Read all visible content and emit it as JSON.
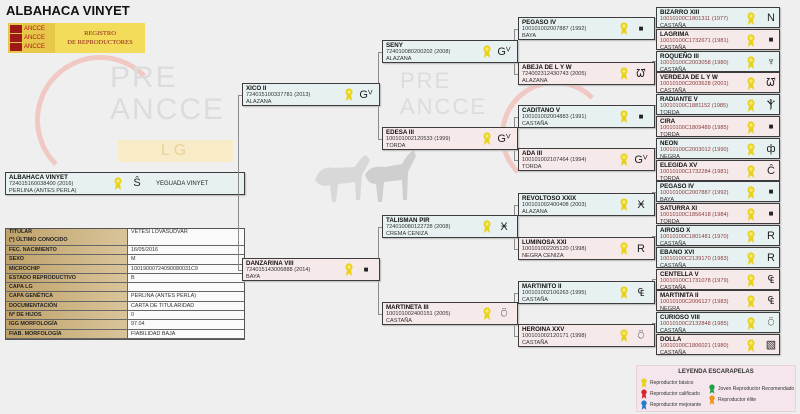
{
  "header": {
    "title": "ALBAHACA VINYET",
    "logo_text": [
      "ANCCE",
      "ANCCE",
      "ANCCE"
    ],
    "registry_line1": "REGISTRO",
    "registry_line2": "DE REPRODUCTORES"
  },
  "watermark": {
    "line1": "PRE",
    "line2": "ANCCE",
    "line3": "LG"
  },
  "subject": {
    "name": "ALBAHACA VINYET",
    "id": "724015160038400 (2016)",
    "coat": "PERLINA (ANTES PERLA)",
    "ribbon": "yellow",
    "brand": "S-brand",
    "brand_glyph": "Ŝ",
    "breeder": "YEGUADA VINYET"
  },
  "info": [
    {
      "label": "TITULAR\n(*) ÚLTIMO CONOCIDO",
      "value": "VETESI LOVASUDVAR"
    },
    {
      "label": "FEC. NACIMIENTO",
      "value": "16/05/2016"
    },
    {
      "label": "SEXO",
      "value": "M"
    },
    {
      "label": "MICROCHIP",
      "value": "10019000724090080031C9"
    },
    {
      "label": "ESTADO REPRODUCTIVO",
      "value": "B"
    },
    {
      "label": "CAPA LG",
      "value": ""
    },
    {
      "label": "CAPA GENÉTICA",
      "value": "PERLINA (ANTES PERLA)"
    },
    {
      "label": "DOCUMENTACIÓN",
      "value": "CARTA DE TITULARIDAD"
    },
    {
      "label": "Nº DE HIJOS",
      "value": "0"
    },
    {
      "label": "IGG MORFOLOGÍA",
      "value": "97.04"
    },
    {
      "label": "FIAB. MORFOLOGÍA",
      "value": "FIABILIDAD BAJA"
    }
  ],
  "pedigree": {
    "gen1": [
      {
        "name": "XICO II",
        "id": "724015100337781 (2013)",
        "coat": "ALAZANA",
        "sex": "m",
        "ribbon": "yellow",
        "brand": "G-brand",
        "glyph": "Gⱽ"
      },
      {
        "name": "DANZARINA VIII",
        "id": "724015143006888 (2014)",
        "coat": "BAYA",
        "sex": "f",
        "ribbon": "yellow",
        "brand": "square-brand",
        "glyph": "■"
      }
    ],
    "gen2": [
      {
        "name": "SENY",
        "id": "724010080200202 (2008)",
        "coat": "ALAZANA",
        "sex": "m",
        "ribbon": "yellow",
        "brand": "G-brand",
        "glyph": "Gⱽ"
      },
      {
        "name": "EDESA III",
        "id": "100101002120533 (1999)",
        "coat": "TORDA",
        "sex": "f",
        "ribbon": "yellow",
        "brand": "G-brand",
        "glyph": "Gⱽ"
      },
      {
        "name": "TALISMAN PIR",
        "id": "724010080122728 (2008)",
        "coat": "CREMA CENIZA",
        "sex": "m",
        "ribbon": "yellow",
        "brand": "H-brand",
        "glyph": "Ӿ"
      },
      {
        "name": "MARTINETA III",
        "id": "100101002400151 (2005)",
        "coat": "CASTAÑA",
        "sex": "f",
        "ribbon": "yellow",
        "brand": "V2-brand",
        "glyph": "⍥"
      }
    ],
    "gen3": [
      {
        "name": "PEGASO IV",
        "id": "100101002007887 (1992)",
        "coat": "BAYA",
        "sex": "m",
        "ribbon": "yellow",
        "brand": "square-brand",
        "glyph": "■"
      },
      {
        "name": "ABEJA DE L Y W",
        "id": "724002312430743 (2005)",
        "coat": "ALAZANA",
        "sex": "f",
        "ribbon": "yellow",
        "brand": "LYW-brand",
        "glyph": "ᘺ"
      },
      {
        "name": "CADITANO V",
        "id": "100101002004883 (1991)",
        "coat": "CASTAÑA",
        "sex": "m",
        "ribbon": "yellow",
        "brand": "square-brand",
        "glyph": "■"
      },
      {
        "name": "ADA III",
        "id": "100101002107464 (1994)",
        "coat": "TORDA",
        "sex": "f",
        "ribbon": "yellow",
        "brand": "G-brand",
        "glyph": "Gⱽ"
      },
      {
        "name": "REVOLTOSO XXIX",
        "id": "100101002400408 (2003)",
        "coat": "ALAZANA",
        "sex": "m",
        "ribbon": "yellow",
        "brand": "H-brand",
        "glyph": "Ӿ"
      },
      {
        "name": "LUMINOSA XXI",
        "id": "100101002205120 (1998)",
        "coat": "NEGRA CENIZA",
        "sex": "f",
        "ribbon": "yellow",
        "brand": "R-brand",
        "glyph": "R"
      },
      {
        "name": "MARTINITO II",
        "id": "100101002106263 (1995)",
        "coat": "CASTAÑA",
        "sex": "m",
        "ribbon": "yellow",
        "brand": "CS-brand",
        "glyph": "₠"
      },
      {
        "name": "HEROINA XXV",
        "id": "100101002120171 (1998)",
        "coat": "CASTAÑA",
        "sex": "f",
        "ribbon": "yellow",
        "brand": "V2-brand",
        "glyph": "⍥"
      }
    ],
    "gen4": [
      {
        "name": "BIZARRO XIII",
        "id": "10010100C1801311 (1977)",
        "coat": "CASTAÑA",
        "sex": "m",
        "ribbon": "yellow",
        "brand": "N-brand",
        "glyph": "N"
      },
      {
        "name": "LAGRIMA",
        "id": "10010100C1732671 (1981)",
        "coat": "CASTAÑA",
        "sex": "f",
        "ribbon": "yellow",
        "brand": "square-brand",
        "glyph": "■"
      },
      {
        "name": "ROQUEÑO III",
        "id": "10010100C2003058 (1980)",
        "coat": "CASTAÑA",
        "sex": "m",
        "ribbon": "yellow",
        "brand": "crown-brand",
        "glyph": "♆"
      },
      {
        "name": "VERDEJA DE L Y W",
        "id": "10010100C2003628 (2001)",
        "coat": "CASTAÑA",
        "sex": "f",
        "ribbon": "yellow",
        "brand": "LYW-brand",
        "glyph": "ᘺ"
      },
      {
        "name": "RADIANTE V",
        "id": "10010100C1881152 (1985)",
        "coat": "TORDA",
        "sex": "m",
        "ribbon": "yellow",
        "brand": "JE-brand",
        "glyph": "Ⲯ"
      },
      {
        "name": "CIRA",
        "id": "10010100C1809489 (1985)",
        "coat": "TORDA",
        "sex": "f",
        "ribbon": "yellow",
        "brand": "square-brand",
        "glyph": "■"
      },
      {
        "name": "NEON",
        "id": "10010100C2003012 (1990)",
        "coat": "NEGRA",
        "sex": "m",
        "ribbon": "yellow",
        "brand": "mt-brand",
        "glyph": "ф"
      },
      {
        "name": "ELEGIDA XV",
        "id": "10010100C1732284 (1981)",
        "coat": "TORDA",
        "sex": "f",
        "ribbon": "yellow",
        "brand": "C-brand",
        "glyph": "Ĉ"
      },
      {
        "name": "PEGASO IV",
        "id": "10010100C2007887 (1992)",
        "coat": "BAYA",
        "sex": "m",
        "ribbon": "yellow",
        "brand": "square-brand",
        "glyph": "■"
      },
      {
        "name": "SATURRA XI",
        "id": "10010100C1856418 (1984)",
        "coat": "TORDA",
        "sex": "f",
        "ribbon": "yellow",
        "brand": "square-brand",
        "glyph": "■"
      },
      {
        "name": "AIROSO X",
        "id": "10010100C1801481 (1970)",
        "coat": "CASTAÑA",
        "sex": "m",
        "ribbon": "yellow",
        "brand": "R-brand",
        "glyph": "R"
      },
      {
        "name": "EBANO XVI",
        "id": "10010100C2139170 (1983)",
        "coat": "CASTAÑA",
        "sex": "m",
        "ribbon": "yellow",
        "brand": "R-brand",
        "glyph": "R"
      },
      {
        "name": "CENTELLA V",
        "id": "10010100C1731078 (1979)",
        "coat": "CASTAÑA",
        "sex": "f",
        "ribbon": "yellow",
        "brand": "CS-brand",
        "glyph": "₠"
      },
      {
        "name": "MARTINITA II",
        "id": "10010100C2006127 (1983)",
        "coat": "NEGRA",
        "sex": "f",
        "ribbon": "yellow",
        "brand": "CS-brand",
        "glyph": "₠"
      },
      {
        "name": "CURIOSO VIII",
        "id": "10010100C2132848 (1985)",
        "coat": "CASTAÑA",
        "sex": "m",
        "ribbon": "yellow",
        "brand": "V2-brand",
        "glyph": "⍥"
      },
      {
        "name": "DOLLA",
        "id": "10010100C1806021 (1980)",
        "coat": "CASTAÑA",
        "sex": "f",
        "ribbon": "yellow",
        "brand": "N-square-brand",
        "glyph": "▧"
      }
    ]
  },
  "legend": {
    "title": "LEYENDA ESCARAPELAS",
    "items": [
      {
        "label": "Reproductor básico",
        "color": "#e8d21c"
      },
      {
        "label": "Reproductor calificado",
        "color": "#d9262c"
      },
      {
        "label": "Reproductor mejorante",
        "color": "#1f7fc8"
      },
      {
        "label": "Joven Reproductor Recomendado",
        "color": "#22a04a"
      },
      {
        "label": "Reproductor élite",
        "color": "#f0941c"
      }
    ]
  },
  "colors": {
    "male_box": "#e8f1f2",
    "female_box": "#f6e9ea",
    "label_column": "#c9b07c",
    "ribbon_basic": "#e8d21c"
  }
}
